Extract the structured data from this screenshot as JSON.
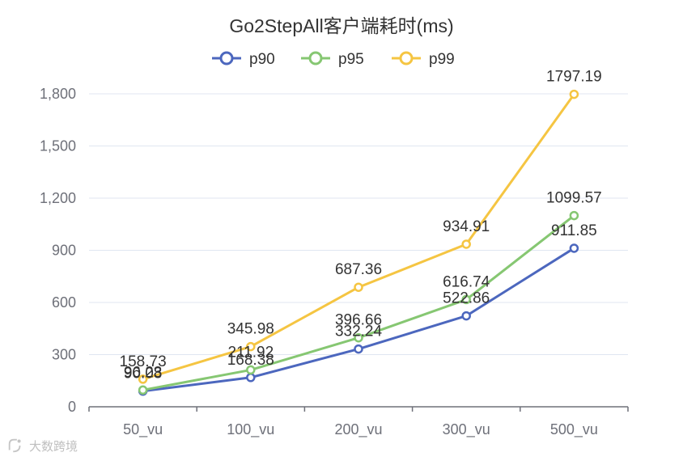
{
  "chart_data": {
    "type": "line",
    "title": "Go2StepAll客户端耗时(ms)",
    "categories": [
      "50_vu",
      "100_vu",
      "200_vu",
      "300_vu",
      "500_vu"
    ],
    "series": [
      {
        "name": "p90",
        "values": [
          90.08,
          168.38,
          332.24,
          522.86,
          911.85
        ],
        "color": "#4c67be"
      },
      {
        "name": "p95",
        "values": [
          96.23,
          211.92,
          396.66,
          616.74,
          1099.57
        ],
        "color": "#86c772"
      },
      {
        "name": "p99",
        "values": [
          158.73,
          345.98,
          687.36,
          934.91,
          1797.19
        ],
        "color": "#f5c542"
      }
    ],
    "data_labels": {
      "p90": [
        "90.08",
        "168.38",
        "332.24",
        "522.86",
        "911.85"
      ],
      "p95": [
        "96.23",
        "211.92",
        "396.66",
        "616.74",
        "1099.57"
      ],
      "p99": [
        "158.73",
        "345.98",
        "687.36",
        "934.91",
        "1797.19"
      ]
    },
    "y_ticks": [
      "0",
      "300",
      "600",
      "900",
      "1,200",
      "1,500",
      "1,800"
    ],
    "y_tick_values": [
      0,
      300,
      600,
      900,
      1200,
      1500,
      1800
    ],
    "ylim": [
      0,
      1800
    ],
    "legend": "top-center",
    "grid": true
  },
  "watermark": {
    "text": "大数跨境"
  },
  "colors": {
    "axis": "#6e7079",
    "grid": "#e0e6f1",
    "title": "#333333",
    "label": "#333333"
  }
}
